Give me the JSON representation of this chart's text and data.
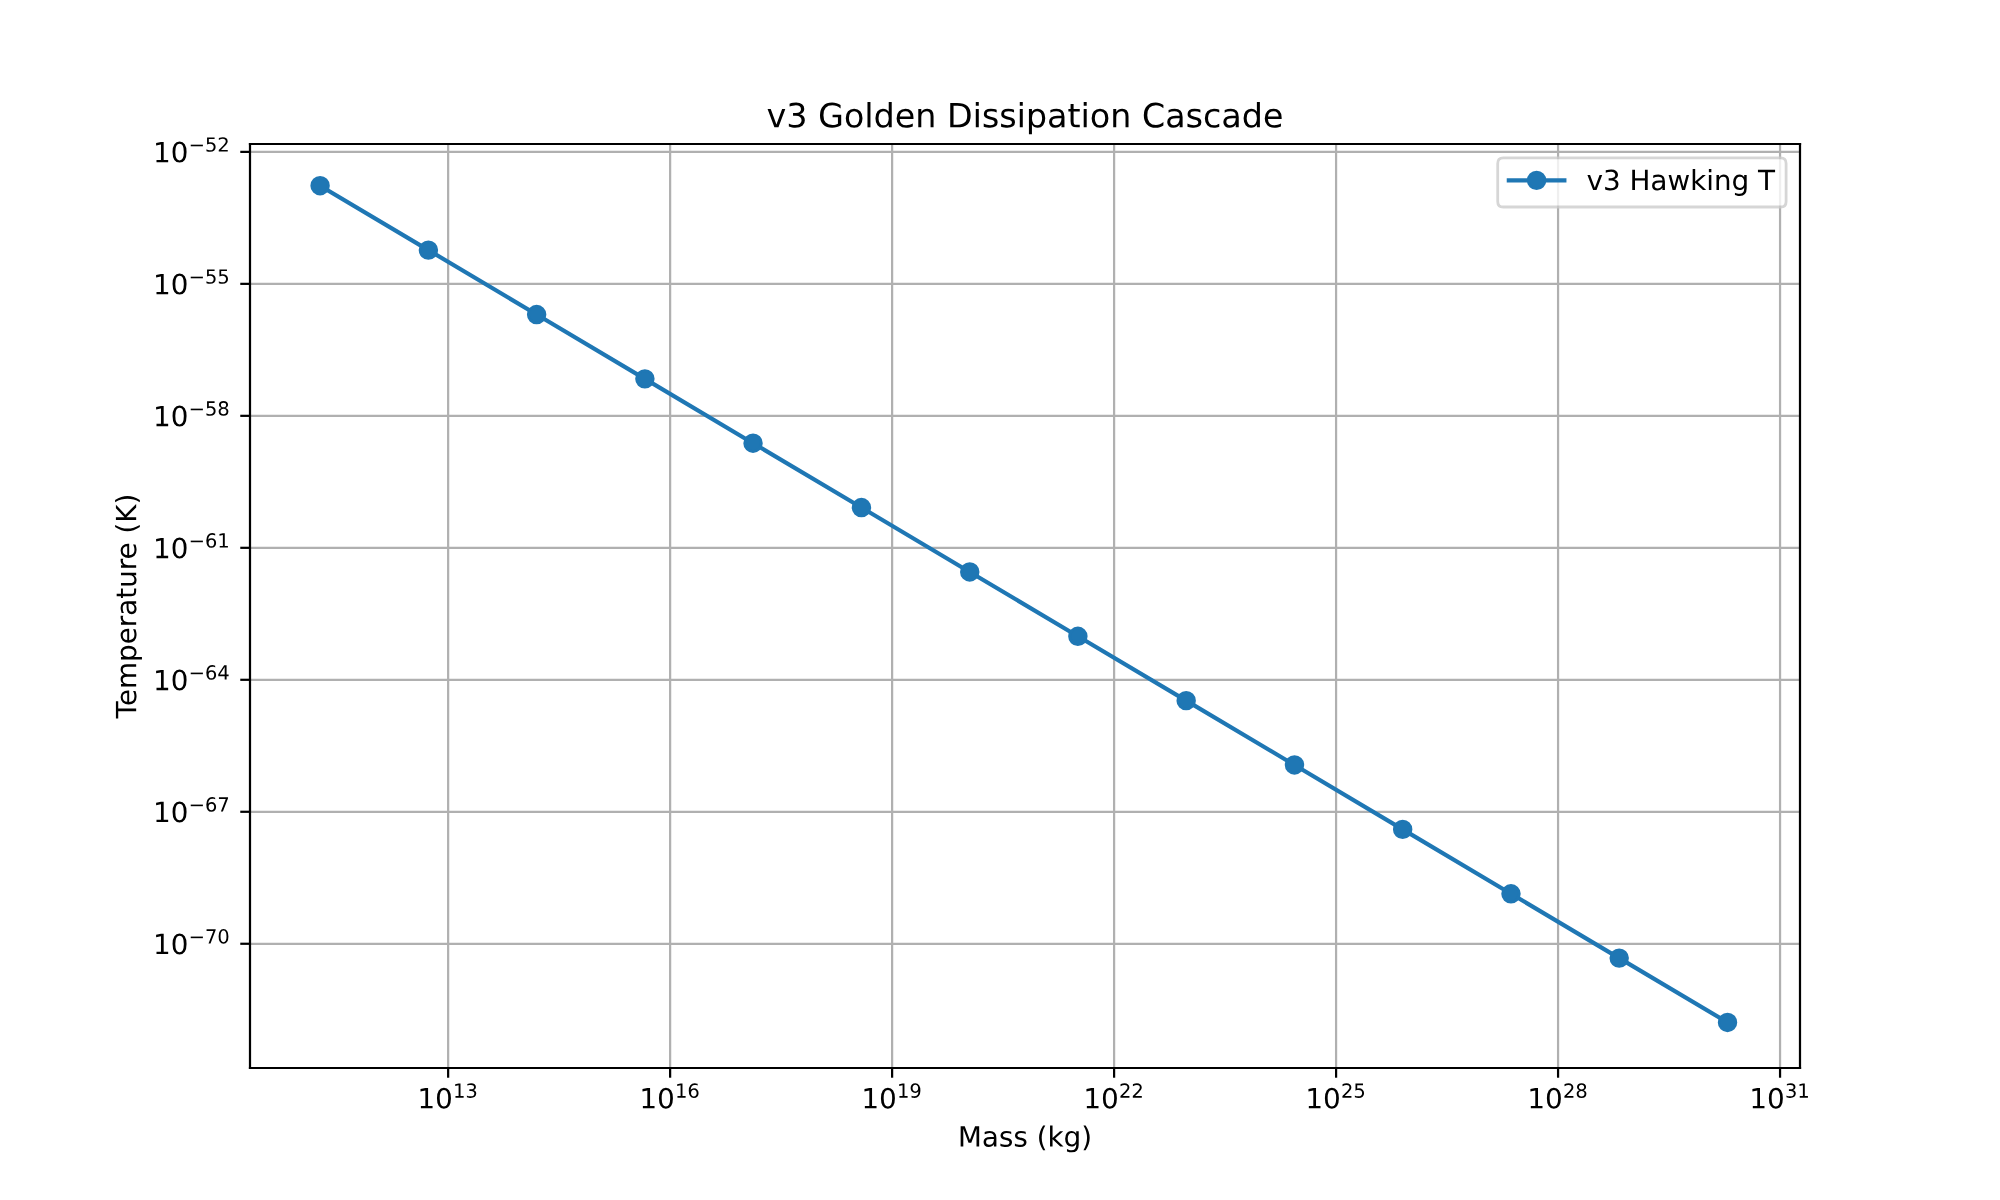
{
  "chart_data": {
    "type": "line",
    "title": "v3 Golden Dissipation Cascade",
    "xlabel": "Mass (kg)",
    "ylabel": "Temperature (K)",
    "log": "xy",
    "grid": true,
    "legend": "top right",
    "marker": "circle",
    "line_style": "solid",
    "x": [
      186000000000.0,
      5410000000000.0,
      157000000000000.0,
      4560000000000000.0,
      1.32e+17,
      3.85e+18,
      1.12e+20,
      3.24e+21,
      9.42e+22,
      2.74e+24,
      7.94e+25,
      2.31e+27,
      6.7e+28,
      1.95e+30
    ],
    "series": [
      {
        "name": "v3 Hawking T",
        "color": "#1f77b4",
        "values": [
          1.7e-53,
          5.85e-55,
          2.01e-56,
          6.93e-58,
          2.39e-59,
          8.22e-61,
          2.83e-62,
          9.75e-64,
          3.36e-65,
          1.16e-66,
          3.98e-68,
          1.37e-69,
          4.72e-71,
          1.63e-72
        ]
      }
    ],
    "xlim": [
      21000000000.0,
      1.86e+31
    ],
    "ylim": [
      1.5e-73,
      1.51e-52
    ],
    "xticks": [
      {
        "value": 10000000000000.0,
        "label": "10$^{13}$"
      },
      {
        "value": 1e+16,
        "label": "10$^{16}$"
      },
      {
        "value": 1e+19,
        "label": "10$^{19}$"
      },
      {
        "value": 1e+22,
        "label": "10$^{22}$"
      },
      {
        "value": 1e+25,
        "label": "10$^{25}$"
      },
      {
        "value": 1e+28,
        "label": "10$^{28}$"
      },
      {
        "value": 1e+31,
        "label": "10$^{31}$"
      }
    ],
    "yticks": [
      {
        "value": 1e-52,
        "label": "10$^{−52}$"
      },
      {
        "value": 1e-55,
        "label": "10$^{−55}$"
      },
      {
        "value": 1e-58,
        "label": "10$^{−58}$"
      },
      {
        "value": 1e-61,
        "label": "10$^{−61}$"
      },
      {
        "value": 1e-64,
        "label": "10$^{−64}$"
      },
      {
        "value": 1e-67,
        "label": "10$^{−67}$"
      },
      {
        "value": 1e-70,
        "label": "10$^{−70}$"
      }
    ]
  }
}
